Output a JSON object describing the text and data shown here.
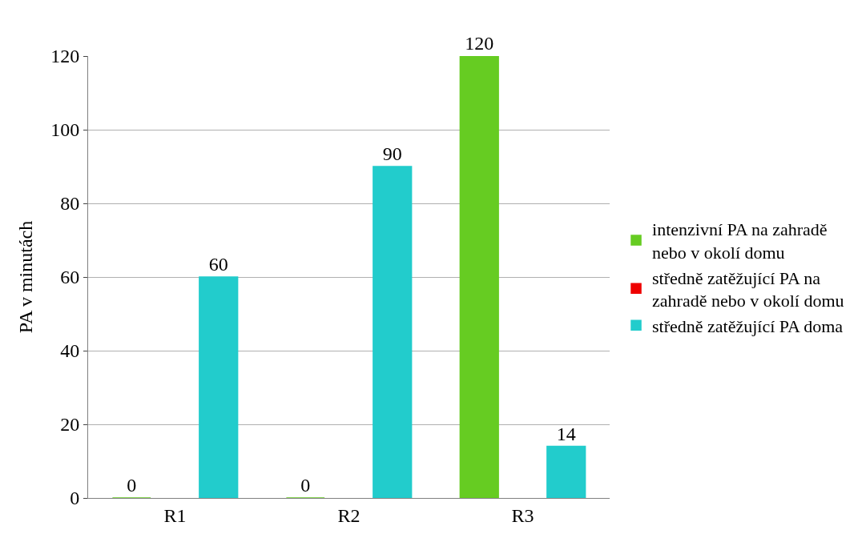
{
  "chart_data": {
    "type": "bar",
    "categories": [
      "R1",
      "R2",
      "R3"
    ],
    "series": [
      {
        "name": "intenzivní PA na zahradě nebo v okolí domu",
        "color": "#66cc22",
        "values": [
          0,
          0,
          120
        ]
      },
      {
        "name": "středně zatěžující PA na zahradě nebo v okolí domu",
        "color": "#ee0000",
        "values": [
          null,
          null,
          null
        ]
      },
      {
        "name": "středně zatěžující PA doma",
        "color": "#22cccc",
        "values": [
          60,
          90,
          14
        ]
      }
    ],
    "ylabel": "PA v minutách",
    "ylim": [
      0,
      120
    ],
    "yticks": [
      0,
      20,
      40,
      60,
      80,
      100,
      120
    ],
    "grid": "y",
    "legend": "right",
    "data_labels": true
  }
}
